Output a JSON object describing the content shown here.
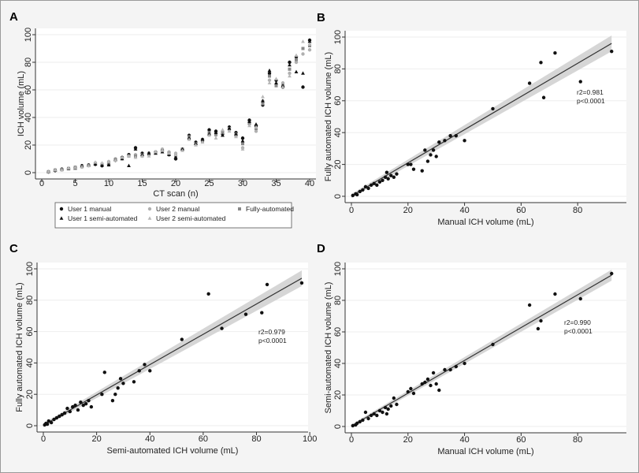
{
  "chart_data": [
    {
      "panel": "A",
      "type": "scatter",
      "xlabel": "CT scan (n)",
      "ylabel": "ICH volume (mL)",
      "xlim": [
        0,
        40
      ],
      "ylim": [
        0,
        100
      ],
      "xticks": [
        0,
        5,
        10,
        15,
        20,
        25,
        30,
        35,
        40
      ],
      "yticks": [
        0,
        20,
        40,
        60,
        80,
        100
      ],
      "grid": true,
      "legend_position": "bottom",
      "series": [
        {
          "name": "User 1 manual",
          "marker": "dot",
          "color": "#111111",
          "x": [
            1,
            2,
            3,
            4,
            5,
            6,
            7,
            8,
            9,
            10,
            11,
            12,
            13,
            14,
            15,
            16,
            17,
            18,
            19,
            20,
            21,
            22,
            23,
            24,
            25,
            26,
            27,
            28,
            29,
            30,
            31,
            32,
            33,
            34,
            35,
            36,
            37,
            38,
            39,
            40
          ],
          "y": [
            0.5,
            1.5,
            2.5,
            3,
            3.5,
            5,
            5.5,
            6,
            5,
            6,
            9,
            11,
            13,
            18,
            14,
            14,
            15,
            16,
            13,
            10,
            17,
            27,
            22,
            24,
            31,
            30,
            28,
            33,
            29,
            25,
            38,
            34,
            49,
            72,
            67,
            62,
            80,
            84,
            62,
            96
          ]
        },
        {
          "name": "User 2 manual",
          "marker": "dot",
          "color": "#b0b0b0",
          "x": [
            1,
            2,
            3,
            4,
            5,
            6,
            7,
            8,
            9,
            10,
            11,
            12,
            13,
            14,
            15,
            16,
            17,
            18,
            19,
            20,
            21,
            22,
            23,
            24,
            25,
            26,
            27,
            28,
            29,
            30,
            31,
            32,
            33,
            34,
            35,
            36,
            37,
            38,
            39,
            40
          ],
          "y": [
            0.8,
            2,
            2,
            3,
            4,
            4,
            5,
            7,
            6,
            8,
            10,
            10,
            12,
            13,
            12,
            13,
            15,
            17,
            15,
            14,
            17,
            25,
            21,
            23,
            28,
            27,
            30,
            31,
            28,
            18,
            35,
            30,
            52,
            67,
            64,
            65,
            72,
            80,
            86,
            89
          ]
        },
        {
          "name": "Fully-automated",
          "marker": "square",
          "color": "#888888",
          "x": [
            1,
            2,
            3,
            4,
            5,
            6,
            7,
            8,
            9,
            10,
            11,
            12,
            13,
            14,
            15,
            16,
            17,
            18,
            19,
            20,
            21,
            22,
            23,
            24,
            25,
            26,
            27,
            28,
            29,
            30,
            31,
            32,
            33,
            34,
            35,
            36,
            37,
            38,
            39,
            40
          ],
          "y": [
            0.6,
            1.8,
            2.2,
            3,
            3.8,
            4.5,
            5.2,
            6.5,
            6,
            7,
            9.5,
            10.5,
            12,
            12,
            13,
            13.5,
            14.5,
            16,
            14,
            12,
            17,
            26,
            21,
            23,
            29,
            28,
            29,
            32,
            27,
            21,
            36,
            32,
            50,
            70,
            63,
            63,
            75,
            82,
            90,
            92
          ]
        },
        {
          "name": "User 1 semi-automated",
          "marker": "triangle",
          "color": "#111111",
          "x": [
            1,
            2,
            3,
            4,
            5,
            6,
            7,
            8,
            9,
            10,
            11,
            12,
            13,
            14,
            15,
            16,
            17,
            18,
            19,
            20,
            21,
            22,
            23,
            24,
            25,
            26,
            27,
            28,
            29,
            30,
            31,
            32,
            33,
            34,
            35,
            36,
            37,
            38,
            39,
            40
          ],
          "y": [
            0.6,
            1.7,
            2.3,
            2.8,
            3.2,
            4.8,
            5.3,
            6.2,
            5.5,
            5.5,
            9,
            10,
            5,
            17,
            13,
            14,
            14,
            15,
            13,
            11,
            17,
            25,
            21,
            24,
            28,
            29,
            27,
            32,
            28,
            23,
            37,
            35,
            52,
            74,
            65,
            63,
            78,
            73,
            72,
            95
          ]
        },
        {
          "name": "User 2 semi-automated",
          "marker": "triangle",
          "color": "#b8b8b8",
          "x": [
            1,
            2,
            3,
            4,
            5,
            6,
            7,
            8,
            9,
            10,
            11,
            12,
            13,
            14,
            15,
            16,
            17,
            18,
            19,
            20,
            21,
            22,
            23,
            24,
            25,
            26,
            27,
            28,
            29,
            30,
            31,
            32,
            33,
            34,
            35,
            36,
            37,
            38,
            39,
            40
          ],
          "y": [
            0.7,
            1.9,
            2.1,
            3.2,
            3.5,
            4.2,
            5,
            7.5,
            7,
            8,
            9,
            11,
            12,
            11,
            12,
            12,
            15,
            16,
            14,
            13,
            16,
            24,
            20,
            22,
            27,
            25,
            31,
            30,
            26,
            17,
            34,
            33,
            55,
            65,
            68,
            62,
            70,
            85,
            95,
            93
          ]
        }
      ]
    },
    {
      "panel": "B",
      "type": "scatter",
      "xlabel": "Manual ICH volume (mL)",
      "ylabel": "Fully automated ICH volume (mL)",
      "xlim": [
        0,
        95
      ],
      "ylim": [
        0,
        100
      ],
      "xticks": [
        0,
        20,
        40,
        60,
        80
      ],
      "yticks": [
        0,
        20,
        40,
        60,
        80,
        100
      ],
      "annotation": [
        "r2=0.981",
        "p<0.0001"
      ],
      "fit": {
        "from": [
          0,
          0.2
        ],
        "to": [
          92,
          96
        ],
        "ci_width": [
          1.2,
          5
        ]
      },
      "x": [
        0.5,
        1.5,
        2,
        3,
        4,
        5,
        6,
        7,
        8,
        9,
        10,
        11,
        12,
        12.5,
        13,
        14,
        15,
        16,
        20,
        21,
        22,
        25,
        26,
        27,
        28,
        29,
        30,
        31,
        33,
        35,
        37,
        40,
        50,
        63,
        67,
        68,
        72,
        81,
        92
      ],
      "y": [
        0.5,
        1.5,
        1,
        3,
        4,
        6,
        5,
        7,
        8,
        7,
        9,
        10,
        12,
        15,
        11,
        13,
        12,
        14,
        20,
        20,
        17,
        16,
        29,
        22,
        26,
        29,
        25,
        34,
        35,
        38,
        38,
        35,
        55,
        71,
        84,
        62,
        90,
        72,
        91
      ]
    },
    {
      "panel": "C",
      "type": "scatter",
      "xlabel": "Semi-automated ICH volume (mL)",
      "ylabel": "Fully automated ICH volume (mL)",
      "xlim": [
        0,
        97
      ],
      "ylim": [
        0,
        100
      ],
      "xticks": [
        0,
        20,
        40,
        60,
        80,
        100
      ],
      "yticks": [
        0,
        20,
        40,
        60,
        80,
        100
      ],
      "annotation": [
        "r2=0.979",
        "p<0.0001"
      ],
      "fit": {
        "from": [
          0,
          0.3
        ],
        "to": [
          97,
          94
        ],
        "ci_width": [
          1.2,
          5
        ]
      },
      "x": [
        0.5,
        1,
        1.5,
        2,
        3,
        4,
        5,
        6,
        7,
        8,
        9,
        10,
        11,
        12,
        13,
        14,
        15,
        16,
        17,
        18,
        22,
        23,
        26,
        27,
        28,
        29,
        30,
        34,
        36,
        38,
        40,
        52,
        62,
        67,
        76,
        82,
        84,
        97
      ],
      "y": [
        0.5,
        1.5,
        1,
        3,
        2,
        4,
        5,
        6,
        7,
        8,
        11,
        9,
        12,
        13,
        10,
        15,
        13,
        14,
        16,
        12,
        20,
        34,
        16,
        20,
        24,
        30,
        27,
        28,
        35,
        39,
        35,
        55,
        84,
        62,
        71,
        72,
        90,
        91
      ]
    },
    {
      "panel": "D",
      "type": "scatter",
      "xlabel": "Manual ICH volume (mL)",
      "ylabel": "Semi-automated ICH volume (mL)",
      "xlim": [
        0,
        95
      ],
      "ylim": [
        0,
        100
      ],
      "xticks": [
        0,
        20,
        40,
        60,
        80
      ],
      "yticks": [
        0,
        20,
        40,
        60,
        80,
        100
      ],
      "annotation": [
        "r2=0.990",
        "p<0.0001"
      ],
      "fit": {
        "from": [
          0,
          0.3
        ],
        "to": [
          92,
          96
        ],
        "ci_width": [
          1,
          3.5
        ]
      },
      "x": [
        0.5,
        1.5,
        2,
        3,
        4,
        5,
        6,
        7,
        8,
        9,
        10,
        11,
        12,
        12.5,
        13,
        14,
        15,
        16,
        20,
        21,
        22,
        25,
        26,
        27,
        28,
        29,
        30,
        31,
        33,
        35,
        37,
        40,
        50,
        63,
        66,
        67,
        72,
        81,
        92
      ],
      "y": [
        0.5,
        1,
        2,
        3,
        4,
        9,
        5,
        7,
        8,
        7,
        10,
        9,
        12,
        8,
        11,
        13,
        18,
        14,
        22,
        24,
        21,
        27,
        28,
        30,
        26,
        34,
        27,
        23,
        36,
        36,
        38,
        40,
        52,
        77,
        62,
        67,
        84,
        81,
        97
      ]
    }
  ]
}
